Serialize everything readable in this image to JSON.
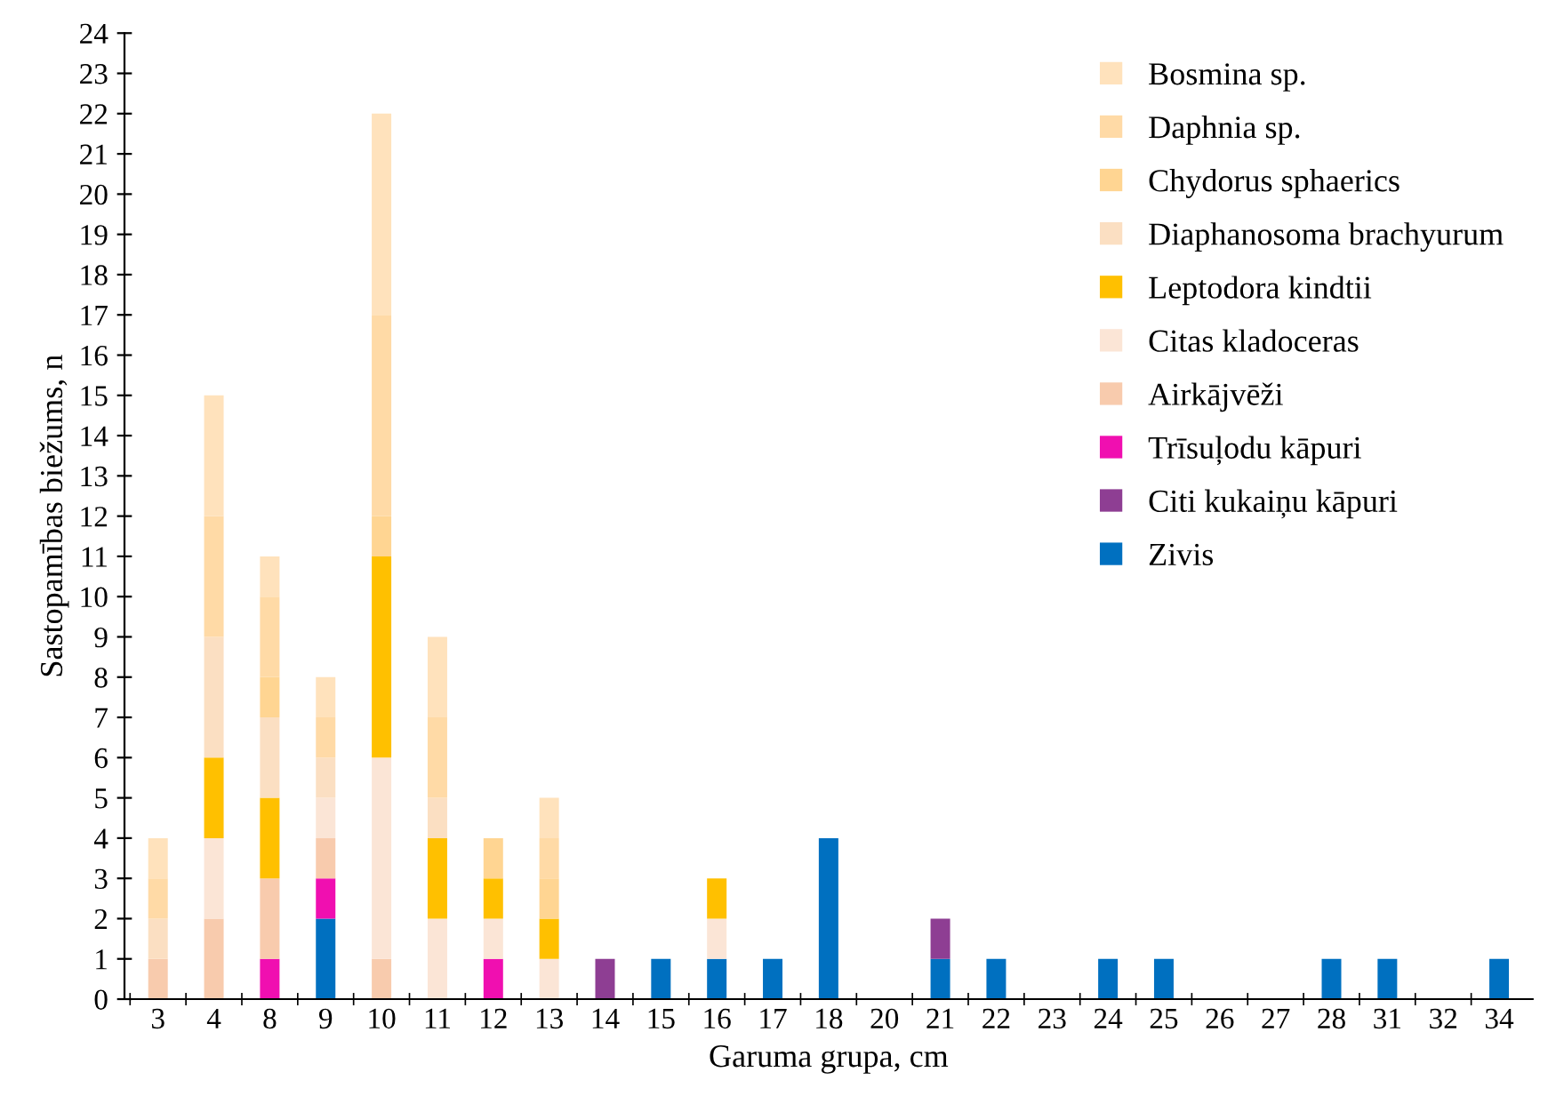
{
  "chart_data": {
    "type": "bar",
    "stacked": true,
    "xlabel": "Garuma grupa, cm",
    "ylabel": "Sastopamības biežums, n",
    "categories": [
      "3",
      "4",
      "8",
      "9",
      "10",
      "11",
      "12",
      "13",
      "14",
      "15",
      "16",
      "17",
      "18",
      "20",
      "21",
      "22",
      "23",
      "24",
      "25",
      "26",
      "27",
      "28",
      "31",
      "32",
      "34"
    ],
    "ylim": [
      0,
      24
    ],
    "yticks": [
      0,
      1,
      2,
      3,
      4,
      5,
      6,
      7,
      8,
      9,
      10,
      11,
      12,
      13,
      14,
      15,
      16,
      17,
      18,
      19,
      20,
      21,
      22,
      23,
      24
    ],
    "grid": false,
    "legend": "top right",
    "series": [
      {
        "name": "Zivis",
        "color": "#0070c0",
        "values": [
          null,
          null,
          null,
          2,
          null,
          null,
          null,
          null,
          null,
          1,
          1,
          1,
          4,
          null,
          1,
          1,
          null,
          1,
          1,
          null,
          null,
          1,
          1,
          null,
          1
        ]
      },
      {
        "name": "Citi kukaiņu kāpuri",
        "color": "#8e3e93",
        "values": [
          null,
          null,
          null,
          null,
          null,
          null,
          null,
          null,
          1,
          null,
          null,
          null,
          null,
          null,
          1,
          null,
          null,
          null,
          null,
          null,
          null,
          null,
          null,
          null,
          null
        ]
      },
      {
        "name": "Trīsuļodu kāpuri",
        "color": "#f00fb0",
        "values": [
          null,
          null,
          1,
          1,
          null,
          null,
          1,
          null,
          null,
          null,
          null,
          null,
          null,
          null,
          null,
          null,
          null,
          null,
          null,
          null,
          null,
          null,
          null,
          null,
          null
        ]
      },
      {
        "name": "Airkājvēži",
        "color": "#f8cbad",
        "values": [
          1,
          2,
          2,
          1,
          1,
          null,
          null,
          null,
          null,
          null,
          null,
          null,
          null,
          null,
          null,
          null,
          null,
          null,
          null,
          null,
          null,
          null,
          null,
          null,
          null
        ]
      },
      {
        "name": "Citas kladoceras",
        "color": "#fbe5d6",
        "values": [
          null,
          2,
          null,
          1,
          5,
          2,
          1,
          1,
          null,
          null,
          1,
          null,
          null,
          null,
          null,
          null,
          null,
          null,
          null,
          null,
          null,
          null,
          null,
          null,
          null
        ]
      },
      {
        "name": "Leptodora kindtii",
        "color": "#ffc000",
        "values": [
          null,
          2,
          2,
          null,
          5,
          2,
          1,
          1,
          null,
          null,
          1,
          null,
          null,
          null,
          null,
          null,
          null,
          null,
          null,
          null,
          null,
          null,
          null,
          null,
          null
        ]
      },
      {
        "name": "Diaphanosoma brachyurum",
        "color": "#fbdfc2",
        "values": [
          1,
          3,
          2,
          1,
          null,
          1,
          null,
          null,
          null,
          null,
          null,
          null,
          null,
          null,
          null,
          null,
          null,
          null,
          null,
          null,
          null,
          null,
          null,
          null,
          null
        ]
      },
      {
        "name": "Chydorus sphaerics",
        "color": "#ffd592",
        "values": [
          null,
          null,
          1,
          null,
          1,
          null,
          1,
          1,
          null,
          null,
          null,
          null,
          null,
          null,
          null,
          null,
          null,
          null,
          null,
          null,
          null,
          null,
          null,
          null,
          null
        ]
      },
      {
        "name": "Daphnia sp.",
        "color": "#ffdaa6",
        "values": [
          1,
          3,
          2,
          1,
          5,
          2,
          null,
          1,
          null,
          null,
          null,
          null,
          null,
          null,
          null,
          null,
          null,
          null,
          null,
          null,
          null,
          null,
          null,
          null,
          null
        ]
      },
      {
        "name": "Bosmina sp.",
        "color": "#ffe2bc",
        "values": [
          1,
          3,
          1,
          1,
          5,
          2,
          null,
          1,
          null,
          null,
          null,
          null,
          null,
          null,
          null,
          null,
          null,
          null,
          null,
          null,
          null,
          null,
          null,
          null,
          null
        ]
      }
    ]
  }
}
